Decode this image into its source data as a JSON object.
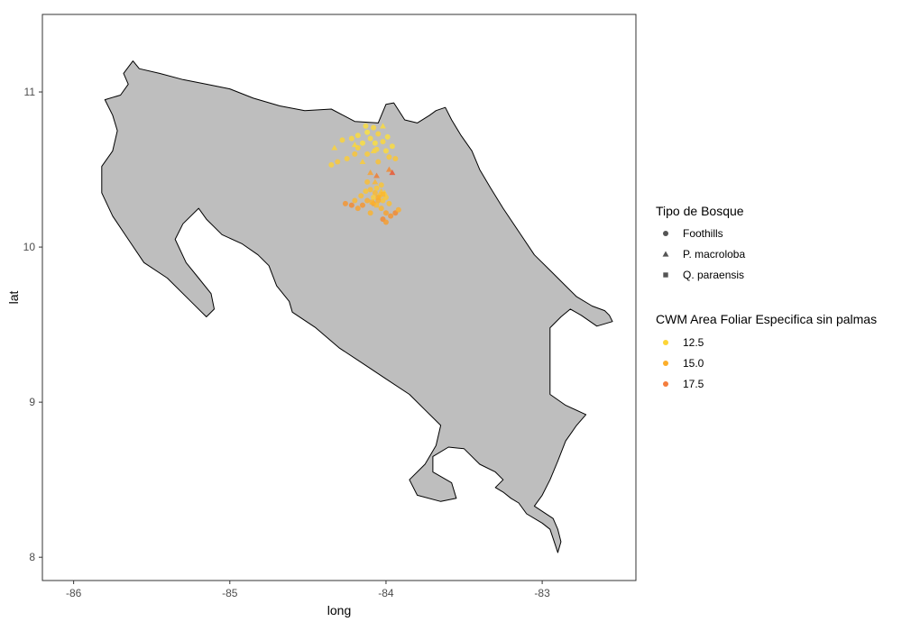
{
  "chart_data": {
    "type": "scatter",
    "xlabel": "long",
    "ylabel": "lat",
    "xlim": [
      -86.2,
      -82.4
    ],
    "ylim": [
      7.85,
      11.5
    ],
    "x_ticks": [
      -86,
      -85,
      -84,
      -83
    ],
    "x_tick_labels": [
      "-86",
      "-85",
      "-84",
      "-83"
    ],
    "y_ticks": [
      8,
      9,
      10,
      11
    ],
    "y_tick_labels": [
      "8",
      "9",
      "10",
      "11"
    ],
    "grid": false,
    "panel_border": true,
    "map_fill_color": "#bebebe",
    "map_stroke_color": "#000000",
    "map_outline": [
      [
        -85.58,
        11.15
      ],
      [
        -85.45,
        11.12
      ],
      [
        -85.3,
        11.08
      ],
      [
        -85.15,
        11.05
      ],
      [
        -85.0,
        11.02
      ],
      [
        -84.85,
        10.96
      ],
      [
        -84.68,
        10.91
      ],
      [
        -84.52,
        10.88
      ],
      [
        -84.35,
        10.89
      ],
      [
        -84.2,
        10.81
      ],
      [
        -84.05,
        10.8
      ],
      [
        -84.0,
        10.92
      ],
      [
        -83.95,
        10.93
      ],
      [
        -83.88,
        10.82
      ],
      [
        -83.8,
        10.8
      ],
      [
        -83.72,
        10.85
      ],
      [
        -83.68,
        10.88
      ],
      [
        -83.62,
        10.9
      ],
      [
        -83.58,
        10.82
      ],
      [
        -83.52,
        10.72
      ],
      [
        -83.45,
        10.62
      ],
      [
        -83.4,
        10.5
      ],
      [
        -83.33,
        10.38
      ],
      [
        -83.25,
        10.25
      ],
      [
        -83.15,
        10.1
      ],
      [
        -83.05,
        9.95
      ],
      [
        -82.95,
        9.85
      ],
      [
        -82.85,
        9.75
      ],
      [
        -82.78,
        9.68
      ],
      [
        -82.68,
        9.62
      ],
      [
        -82.6,
        9.59
      ],
      [
        -82.57,
        9.56
      ],
      [
        -82.55,
        9.52
      ],
      [
        -82.65,
        9.49
      ],
      [
        -82.75,
        9.56
      ],
      [
        -82.82,
        9.6
      ],
      [
        -82.88,
        9.55
      ],
      [
        -82.95,
        9.48
      ],
      [
        -82.95,
        9.2
      ],
      [
        -82.95,
        9.05
      ],
      [
        -82.85,
        8.98
      ],
      [
        -82.72,
        8.92
      ],
      [
        -82.78,
        8.85
      ],
      [
        -82.85,
        8.75
      ],
      [
        -82.9,
        8.62
      ],
      [
        -82.95,
        8.5
      ],
      [
        -83.0,
        8.4
      ],
      [
        -83.05,
        8.33
      ],
      [
        -82.93,
        8.25
      ],
      [
        -82.9,
        8.18
      ],
      [
        -82.88,
        8.1
      ],
      [
        -82.9,
        8.03
      ],
      [
        -82.92,
        8.09
      ],
      [
        -82.95,
        8.18
      ],
      [
        -83.0,
        8.22
      ],
      [
        -83.1,
        8.28
      ],
      [
        -83.15,
        8.35
      ],
      [
        -83.2,
        8.38
      ],
      [
        -83.25,
        8.42
      ],
      [
        -83.3,
        8.45
      ],
      [
        -83.25,
        8.5
      ],
      [
        -83.3,
        8.55
      ],
      [
        -83.4,
        8.6
      ],
      [
        -83.5,
        8.7
      ],
      [
        -83.6,
        8.71
      ],
      [
        -83.7,
        8.65
      ],
      [
        -83.7,
        8.55
      ],
      [
        -83.58,
        8.48
      ],
      [
        -83.55,
        8.38
      ],
      [
        -83.65,
        8.36
      ],
      [
        -83.8,
        8.4
      ],
      [
        -83.85,
        8.5
      ],
      [
        -83.75,
        8.6
      ],
      [
        -83.68,
        8.72
      ],
      [
        -83.65,
        8.85
      ],
      [
        -83.75,
        8.95
      ],
      [
        -83.85,
        9.05
      ],
      [
        -84.0,
        9.15
      ],
      [
        -84.15,
        9.25
      ],
      [
        -84.3,
        9.35
      ],
      [
        -84.45,
        9.48
      ],
      [
        -84.6,
        9.58
      ],
      [
        -84.62,
        9.65
      ],
      [
        -84.7,
        9.75
      ],
      [
        -84.75,
        9.88
      ],
      [
        -84.82,
        9.95
      ],
      [
        -84.92,
        10.02
      ],
      [
        -85.05,
        10.08
      ],
      [
        -85.15,
        10.18
      ],
      [
        -85.2,
        10.25
      ],
      [
        -85.3,
        10.15
      ],
      [
        -85.35,
        10.05
      ],
      [
        -85.28,
        9.9
      ],
      [
        -85.2,
        9.8
      ],
      [
        -85.12,
        9.7
      ],
      [
        -85.1,
        9.6
      ],
      [
        -85.15,
        9.55
      ],
      [
        -85.25,
        9.65
      ],
      [
        -85.4,
        9.8
      ],
      [
        -85.55,
        9.9
      ],
      [
        -85.65,
        10.05
      ],
      [
        -85.75,
        10.2
      ],
      [
        -85.82,
        10.35
      ],
      [
        -85.82,
        10.52
      ],
      [
        -85.75,
        10.62
      ],
      [
        -85.72,
        10.75
      ],
      [
        -85.75,
        10.85
      ],
      [
        -85.8,
        10.95
      ],
      [
        -85.7,
        10.98
      ],
      [
        -85.65,
        11.05
      ],
      [
        -85.68,
        11.12
      ],
      [
        -85.62,
        11.2
      ],
      [
        -85.58,
        11.15
      ]
    ],
    "legend_shape": {
      "title": "Tipo de Bosque",
      "entries": [
        {
          "label": "Foothills",
          "shape": "circle"
        },
        {
          "label": "P. macroloba",
          "shape": "triangle"
        },
        {
          "label": "Q. paraensis",
          "shape": "square"
        }
      ]
    },
    "legend_color": {
      "title": "CWM Area Foliar Especifica sin palmas",
      "entries": [
        {
          "label": "12.5",
          "value": 12.5,
          "color": "#fdd537"
        },
        {
          "label": "15.0",
          "value": 15.0,
          "color": "#fcae2a"
        },
        {
          "label": "17.5",
          "value": 17.5,
          "color": "#f47d3d"
        }
      ]
    },
    "legend_placement": "right",
    "color_scale": {
      "min": 11.5,
      "max": 19.5,
      "low_color": "#ffec3c",
      "mid_color": "#fcae2a",
      "high_color": "#e8452c"
    },
    "series": [
      {
        "name": "Foothills",
        "shape": "circle",
        "points": [
          {
            "x": -84.28,
            "y": 10.69,
            "v": 13.0
          },
          {
            "x": -84.22,
            "y": 10.7,
            "v": 12.8
          },
          {
            "x": -84.18,
            "y": 10.72,
            "v": 12.5
          },
          {
            "x": -84.15,
            "y": 10.67,
            "v": 12.2
          },
          {
            "x": -84.12,
            "y": 10.74,
            "v": 12.0
          },
          {
            "x": -84.1,
            "y": 10.7,
            "v": 12.5
          },
          {
            "x": -84.07,
            "y": 10.67,
            "v": 12.3
          },
          {
            "x": -84.05,
            "y": 10.73,
            "v": 13.0
          },
          {
            "x": -84.02,
            "y": 10.68,
            "v": 12.8
          },
          {
            "x": -83.99,
            "y": 10.71,
            "v": 12.2
          },
          {
            "x": -84.18,
            "y": 10.64,
            "v": 13.2
          },
          {
            "x": -84.12,
            "y": 10.6,
            "v": 13.5
          },
          {
            "x": -84.06,
            "y": 10.63,
            "v": 13.0
          },
          {
            "x": -84.0,
            "y": 10.62,
            "v": 12.6
          },
          {
            "x": -83.96,
            "y": 10.65,
            "v": 12.5
          },
          {
            "x": -84.2,
            "y": 10.6,
            "v": 14.0
          },
          {
            "x": -84.25,
            "y": 10.57,
            "v": 13.5
          },
          {
            "x": -84.31,
            "y": 10.55,
            "v": 13.8
          },
          {
            "x": -84.35,
            "y": 10.53,
            "v": 13.2
          },
          {
            "x": -84.08,
            "y": 10.77,
            "v": 12.6
          },
          {
            "x": -84.13,
            "y": 10.78,
            "v": 12.4
          },
          {
            "x": -83.98,
            "y": 10.58,
            "v": 13.8
          },
          {
            "x": -84.05,
            "y": 10.55,
            "v": 14.2
          },
          {
            "x": -83.94,
            "y": 10.57,
            "v": 14.0
          },
          {
            "x": -84.1,
            "y": 10.37,
            "v": 14.5
          },
          {
            "x": -84.07,
            "y": 10.35,
            "v": 14.8
          },
          {
            "x": -84.04,
            "y": 10.33,
            "v": 14.2
          },
          {
            "x": -84.02,
            "y": 10.3,
            "v": 14.0
          },
          {
            "x": -84.0,
            "y": 10.32,
            "v": 13.8
          },
          {
            "x": -83.98,
            "y": 10.28,
            "v": 14.5
          },
          {
            "x": -84.05,
            "y": 10.3,
            "v": 15.5
          },
          {
            "x": -84.08,
            "y": 10.28,
            "v": 16.0
          },
          {
            "x": -84.12,
            "y": 10.3,
            "v": 15.5
          },
          {
            "x": -84.15,
            "y": 10.27,
            "v": 16.5
          },
          {
            "x": -84.18,
            "y": 10.25,
            "v": 16.0
          },
          {
            "x": -84.22,
            "y": 10.27,
            "v": 17.0
          },
          {
            "x": -84.2,
            "y": 10.3,
            "v": 15.0
          },
          {
            "x": -84.16,
            "y": 10.33,
            "v": 14.5
          },
          {
            "x": -84.13,
            "y": 10.36,
            "v": 14.0
          },
          {
            "x": -84.03,
            "y": 10.25,
            "v": 15.0
          },
          {
            "x": -84.0,
            "y": 10.22,
            "v": 16.0
          },
          {
            "x": -83.97,
            "y": 10.2,
            "v": 16.5
          },
          {
            "x": -83.94,
            "y": 10.22,
            "v": 17.0
          },
          {
            "x": -83.92,
            "y": 10.24,
            "v": 15.5
          },
          {
            "x": -84.02,
            "y": 10.18,
            "v": 17.0
          },
          {
            "x": -84.0,
            "y": 10.16,
            "v": 16.2
          },
          {
            "x": -84.08,
            "y": 10.32,
            "v": 13.5
          },
          {
            "x": -84.06,
            "y": 10.38,
            "v": 13.8
          },
          {
            "x": -84.03,
            "y": 10.4,
            "v": 14.0
          },
          {
            "x": -84.12,
            "y": 10.42,
            "v": 14.5
          },
          {
            "x": -84.26,
            "y": 10.28,
            "v": 16.5
          },
          {
            "x": -84.1,
            "y": 10.22,
            "v": 15.2
          }
        ]
      },
      {
        "name": "P. macroloba",
        "shape": "triangle",
        "points": [
          {
            "x": -84.1,
            "y": 10.48,
            "v": 16.0
          },
          {
            "x": -84.06,
            "y": 10.46,
            "v": 17.5
          },
          {
            "x": -83.98,
            "y": 10.5,
            "v": 17.0
          },
          {
            "x": -83.96,
            "y": 10.48,
            "v": 19.0
          },
          {
            "x": -84.08,
            "y": 10.62,
            "v": 13.0
          },
          {
            "x": -84.15,
            "y": 10.55,
            "v": 13.5
          },
          {
            "x": -84.2,
            "y": 10.66,
            "v": 12.8
          },
          {
            "x": -84.03,
            "y": 10.36,
            "v": 14.2
          },
          {
            "x": -84.07,
            "y": 10.42,
            "v": 15.0
          },
          {
            "x": -84.01,
            "y": 10.35,
            "v": 13.6
          },
          {
            "x": -84.33,
            "y": 10.64,
            "v": 13.0
          },
          {
            "x": -84.02,
            "y": 10.78,
            "v": 12.5
          }
        ]
      },
      {
        "name": "Q. paraensis",
        "shape": "square",
        "points": [
          {
            "x": -84.05,
            "y": 10.32,
            "v": 15.5
          },
          {
            "x": -84.02,
            "y": 10.34,
            "v": 15.0
          },
          {
            "x": -84.06,
            "y": 10.27,
            "v": 14.8
          },
          {
            "x": -84.09,
            "y": 10.29,
            "v": 15.2
          }
        ]
      }
    ]
  }
}
